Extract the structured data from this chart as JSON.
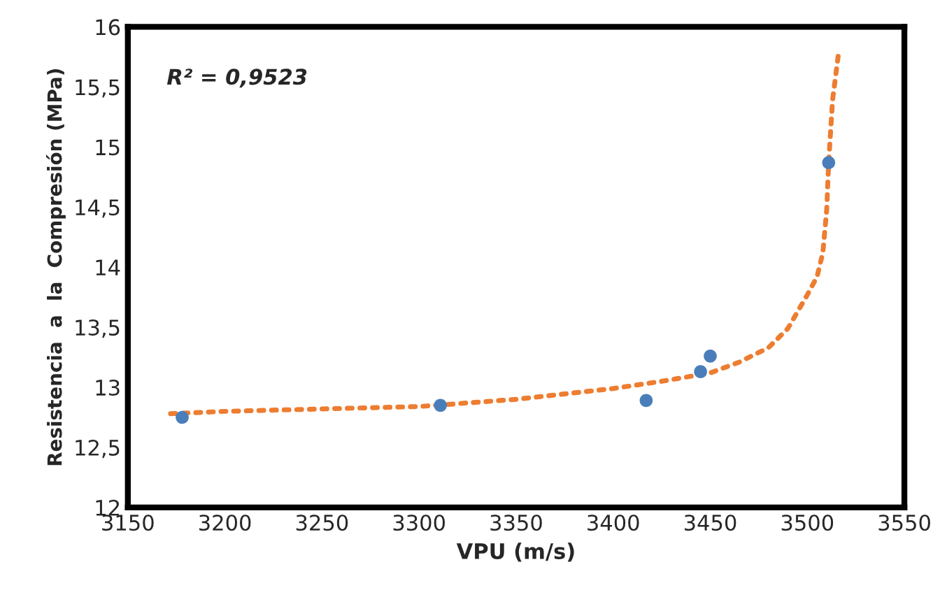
{
  "chart_data": {
    "type": "scatter",
    "xlabel": "VPU (m/s)",
    "ylabel": "Resistencia  a  la  Compresión (MPa)",
    "xlim": [
      3150,
      3550
    ],
    "xticks": [
      3150,
      3200,
      3250,
      3300,
      3350,
      3400,
      3450,
      3500,
      3550
    ],
    "ylim": [
      12,
      16
    ],
    "yticks": [
      {
        "value": 12,
        "label": "12"
      },
      {
        "value": 12.5,
        "label": "12,5"
      },
      {
        "value": 13,
        "label": "13"
      },
      {
        "value": 13.5,
        "label": "13,5"
      },
      {
        "value": 14,
        "label": "14"
      },
      {
        "value": 14.5,
        "label": "14,5"
      },
      {
        "value": 15,
        "label": "15"
      },
      {
        "value": 15.5,
        "label": "15,5"
      },
      {
        "value": 16,
        "label": "16"
      }
    ],
    "grid": false,
    "legend": false,
    "annotations": [
      "R² = 0,9523"
    ],
    "series": [
      {
        "color": "#4a7ebb",
        "marker": "circle",
        "x": [
          3178,
          3311,
          3417,
          3445,
          3450,
          3511
        ],
        "values": [
          12.75,
          12.85,
          12.89,
          13.13,
          13.26,
          14.87
        ]
      },
      {
        "type": "line",
        "color": "#ed7d31",
        "line_style": "dotted",
        "marker": "none",
        "x": [
          3172,
          3200,
          3250,
          3300,
          3350,
          3400,
          3425,
          3450,
          3465,
          3480,
          3490,
          3500,
          3505,
          3508,
          3510,
          3511,
          3513,
          3516
        ],
        "values": [
          12.78,
          12.8,
          12.82,
          12.84,
          12.9,
          12.99,
          13.05,
          13.12,
          13.21,
          13.33,
          13.49,
          13.77,
          13.92,
          14.12,
          14.48,
          14.87,
          15.39,
          15.77
        ]
      }
    ]
  }
}
